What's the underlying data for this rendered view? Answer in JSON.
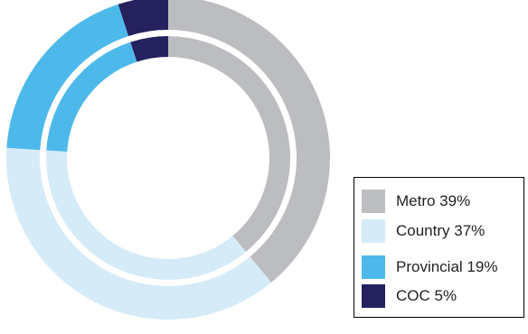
{
  "chart_data": {
    "type": "pie",
    "style": "double-ring donut",
    "series": [
      {
        "values": [
          39,
          37,
          19,
          5
        ]
      },
      {
        "values": [
          39,
          37,
          19,
          5
        ]
      }
    ],
    "categories": [
      "Metro",
      "Country",
      "Provincial",
      "COC"
    ],
    "values": [
      39,
      37,
      19,
      5
    ],
    "colors": [
      "#bcbdc0",
      "#d5ebf8",
      "#4cb9ea",
      "#24215e"
    ],
    "legend_position": "bottom-right"
  },
  "legend": {
    "items": [
      {
        "label": "Metro 39%",
        "color": "#bcbdc0"
      },
      {
        "label": "Country 37%",
        "color": "#d5ebf8"
      },
      {
        "label": "Provincial 19%",
        "color": "#4cb9ea"
      },
      {
        "label": "COC 5%",
        "color": "#24215e"
      }
    ]
  }
}
